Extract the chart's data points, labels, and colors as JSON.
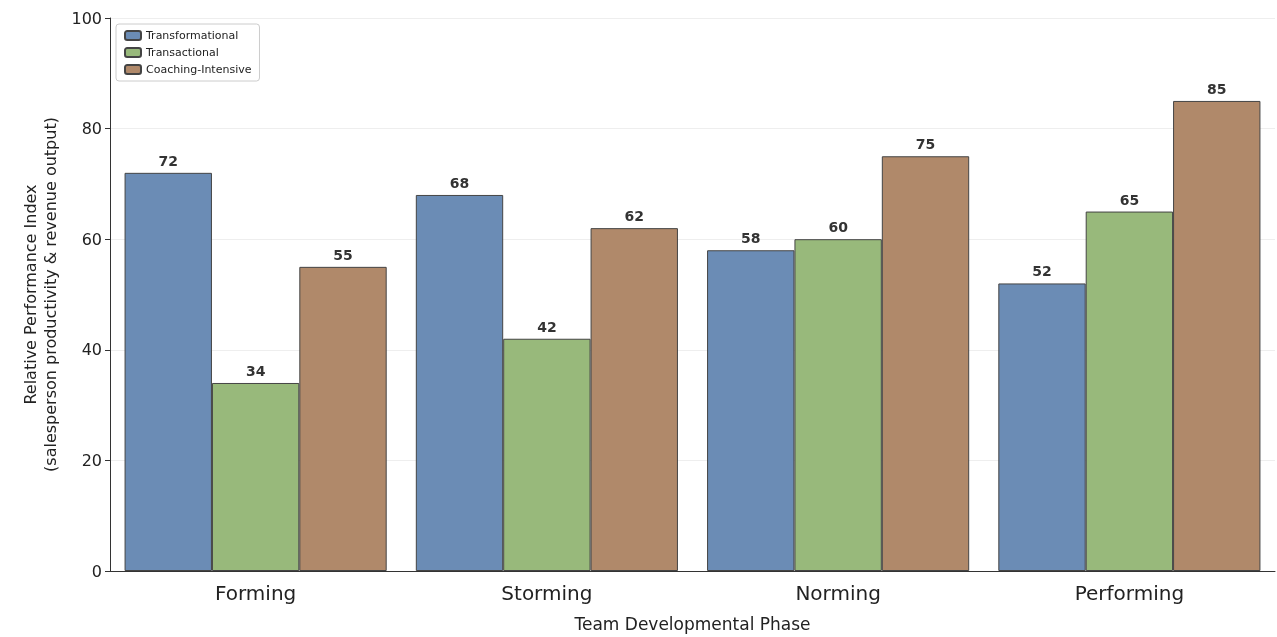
{
  "chart_data": {
    "type": "bar",
    "xlabel": "Team Developmental Phase",
    "ylabel": "Relative Performance Index\n(salesperson productivity & revenue output)",
    "categories": [
      "Forming",
      "Storming",
      "Norming",
      "Performing"
    ],
    "series": [
      {
        "name": "Transformational",
        "color": "#6b8cb5",
        "values": [
          72,
          68,
          58,
          52
        ]
      },
      {
        "name": "Transactional",
        "color": "#98b97b",
        "values": [
          34,
          42,
          60,
          65
        ]
      },
      {
        "name": "Coaching-Intensive",
        "color": "#b0896a",
        "values": [
          55,
          62,
          75,
          85
        ]
      }
    ],
    "ylim": [
      0,
      100
    ],
    "yticks": [
      0,
      20,
      40,
      60,
      80,
      100
    ],
    "grid": "y",
    "legend": "top left",
    "data_labels": true
  }
}
